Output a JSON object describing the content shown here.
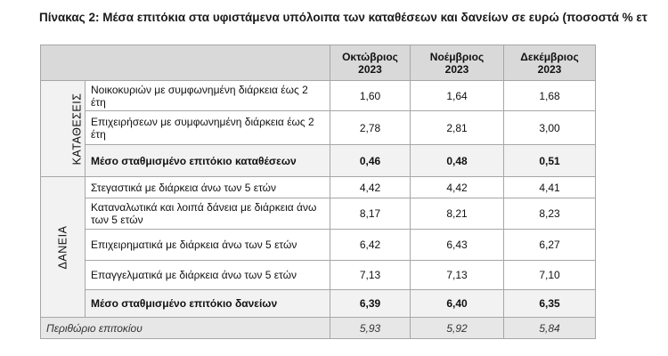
{
  "title": "Πίνακας 2: Μέσα επιτόκια στα υφιστάμενα υπόλοιπα των καταθέσεων και δανείων σε ευρώ (ποσοστά % ετ",
  "table": {
    "columns": [
      {
        "month": "Οκτώβριος",
        "year": "2023"
      },
      {
        "month": "Νοέμβριος",
        "year": "2023"
      },
      {
        "month": "Δεκέμβριος",
        "year": "2023"
      }
    ],
    "groups": [
      {
        "label": "ΚΑΤΑΘΕΣΕΙΣ",
        "rows": [
          {
            "label": "Νοικοκυριών με συμφωνημένη διάρκεια έως 2 έτη",
            "values": [
              "1,60",
              "1,64",
              "1,68"
            ]
          },
          {
            "label": "Επιχειρήσεων με συμφωνημένη διάρκεια έως 2 έτη",
            "values": [
              "2,78",
              "2,81",
              "3,00"
            ]
          }
        ],
        "total": {
          "label": "Μέσο σταθμισμένο επιτόκιο καταθέσεων",
          "values": [
            "0,46",
            "0,48",
            "0,51"
          ]
        }
      },
      {
        "label": "ΔΑΝΕΙΑ",
        "rows": [
          {
            "label": "Στεγαστικά με διάρκεια άνω των 5 ετών",
            "values": [
              "4,42",
              "4,42",
              "4,41"
            ]
          },
          {
            "label": "Καταναλωτικά και λοιπά δάνεια με διάρκεια άνω των 5 ετών",
            "values": [
              "8,17",
              "8,21",
              "8,23"
            ]
          },
          {
            "label": "Επιχειρηματικά με διάρκεια άνω των 5 ετών",
            "values": [
              "6,42",
              "6,43",
              "6,27"
            ]
          },
          {
            "label": "Επαγγελματικά με διάρκεια άνω των 5 ετών",
            "values": [
              "7,13",
              "7,13",
              "7,10"
            ]
          }
        ],
        "total": {
          "label": "Μέσο σταθμισμένο επιτόκιο δανείων",
          "values": [
            "6,39",
            "6,40",
            "6,35"
          ]
        }
      }
    ],
    "footer": {
      "label": "Περιθώριο επιτοκίου",
      "values": [
        "5,93",
        "5,92",
        "5,84"
      ]
    }
  }
}
